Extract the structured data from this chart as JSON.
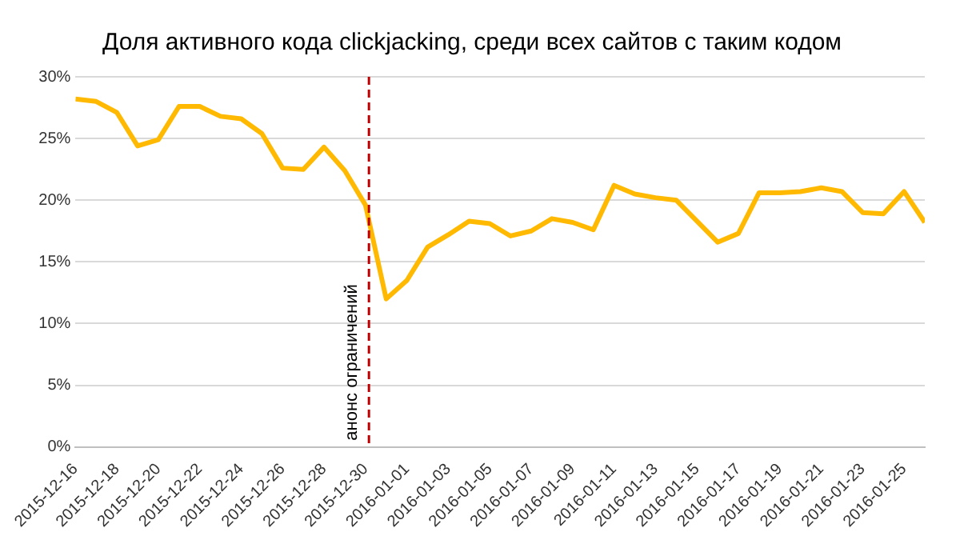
{
  "chart_data": {
    "type": "line",
    "title": "Доля активного кода clickjacking, среди всех сайтов с таким кодом",
    "x": [
      "2015-12-16",
      "2015-12-17",
      "2015-12-18",
      "2015-12-19",
      "2015-12-20",
      "2015-12-21",
      "2015-12-22",
      "2015-12-23",
      "2015-12-24",
      "2015-12-25",
      "2015-12-26",
      "2015-12-27",
      "2015-12-28",
      "2015-12-29",
      "2015-12-30",
      "2015-12-31",
      "2016-01-01",
      "2016-01-02",
      "2016-01-03",
      "2016-01-04",
      "2016-01-05",
      "2016-01-06",
      "2016-01-07",
      "2016-01-08",
      "2016-01-09",
      "2016-01-10",
      "2016-01-11",
      "2016-01-12",
      "2016-01-13",
      "2016-01-14",
      "2016-01-15",
      "2016-01-16",
      "2016-01-17",
      "2016-01-18",
      "2016-01-19",
      "2016-01-20",
      "2016-01-21",
      "2016-01-22",
      "2016-01-23",
      "2016-01-24",
      "2016-01-25",
      "2016-01-26"
    ],
    "series": [
      {
        "color": "#ffb900",
        "values": [
          28.2,
          28.0,
          27.1,
          24.4,
          24.9,
          27.6,
          27.6,
          26.8,
          26.6,
          25.4,
          22.6,
          22.5,
          24.3,
          22.4,
          19.6,
          12.0,
          13.5,
          16.2,
          17.2,
          18.3,
          18.1,
          17.1,
          17.5,
          18.5,
          18.2,
          17.6,
          21.2,
          20.5,
          20.2,
          20.0,
          18.3,
          16.6,
          17.3,
          20.6,
          20.6,
          20.7,
          21.0,
          20.7,
          19.0,
          18.9,
          20.7,
          18.2
        ]
      }
    ],
    "xlim": [
      "2015-12-16",
      "2016-01-26"
    ],
    "xticks": [
      "2015-12-16",
      "2015-12-18",
      "2015-12-20",
      "2015-12-22",
      "2015-12-24",
      "2015-12-26",
      "2015-12-28",
      "2015-12-30",
      "2016-01-01",
      "2016-01-03",
      "2016-01-05",
      "2016-01-07",
      "2016-01-09",
      "2016-01-11",
      "2016-01-13",
      "2016-01-15",
      "2016-01-17",
      "2016-01-19",
      "2016-01-21",
      "2016-01-23",
      "2016-01-25"
    ],
    "ylim": [
      0,
      30
    ],
    "yticks": [
      {
        "value": 0,
        "label": "0%"
      },
      {
        "value": 5,
        "label": "5%"
      },
      {
        "value": 10,
        "label": "10%"
      },
      {
        "value": 15,
        "label": "15%"
      },
      {
        "value": 20,
        "label": "20%"
      },
      {
        "value": 25,
        "label": "25%"
      },
      {
        "value": 30,
        "label": "30%"
      }
    ],
    "ref_lines": [
      {
        "axis": "x",
        "value": "2015-12-30T04:00",
        "label": "анонс ограничений",
        "color": "#c00000",
        "line_style": "dashed"
      }
    ],
    "grid": "y",
    "legend": false,
    "marker": "none",
    "line_style": "solid"
  }
}
